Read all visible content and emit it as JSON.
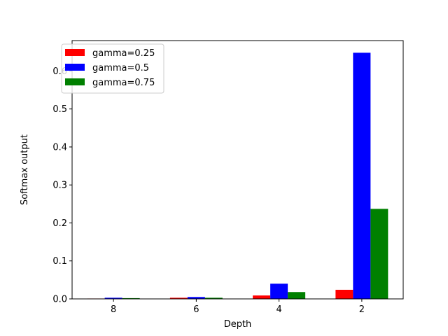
{
  "chart_data": {
    "type": "bar",
    "title": "",
    "xlabel": "Depth",
    "ylabel": "Softmax output",
    "categories": [
      "8",
      "6",
      "4",
      "2"
    ],
    "series": [
      {
        "name": "gamma=0.25",
        "color": "#ff0000",
        "values": [
          0.001,
          0.003,
          0.009,
          0.024
        ]
      },
      {
        "name": "gamma=0.5",
        "color": "#0000ff",
        "values": [
          0.003,
          0.005,
          0.04,
          0.648
        ]
      },
      {
        "name": "gamma=0.75",
        "color": "#008000",
        "values": [
          0.002,
          0.003,
          0.018,
          0.237
        ]
      }
    ],
    "ylim": [
      0,
      0.68
    ],
    "yticks": [
      "0.0",
      "0.1",
      "0.2",
      "0.3",
      "0.4",
      "0.5",
      "0.6"
    ],
    "grid": false,
    "legend_position": "top-left"
  }
}
